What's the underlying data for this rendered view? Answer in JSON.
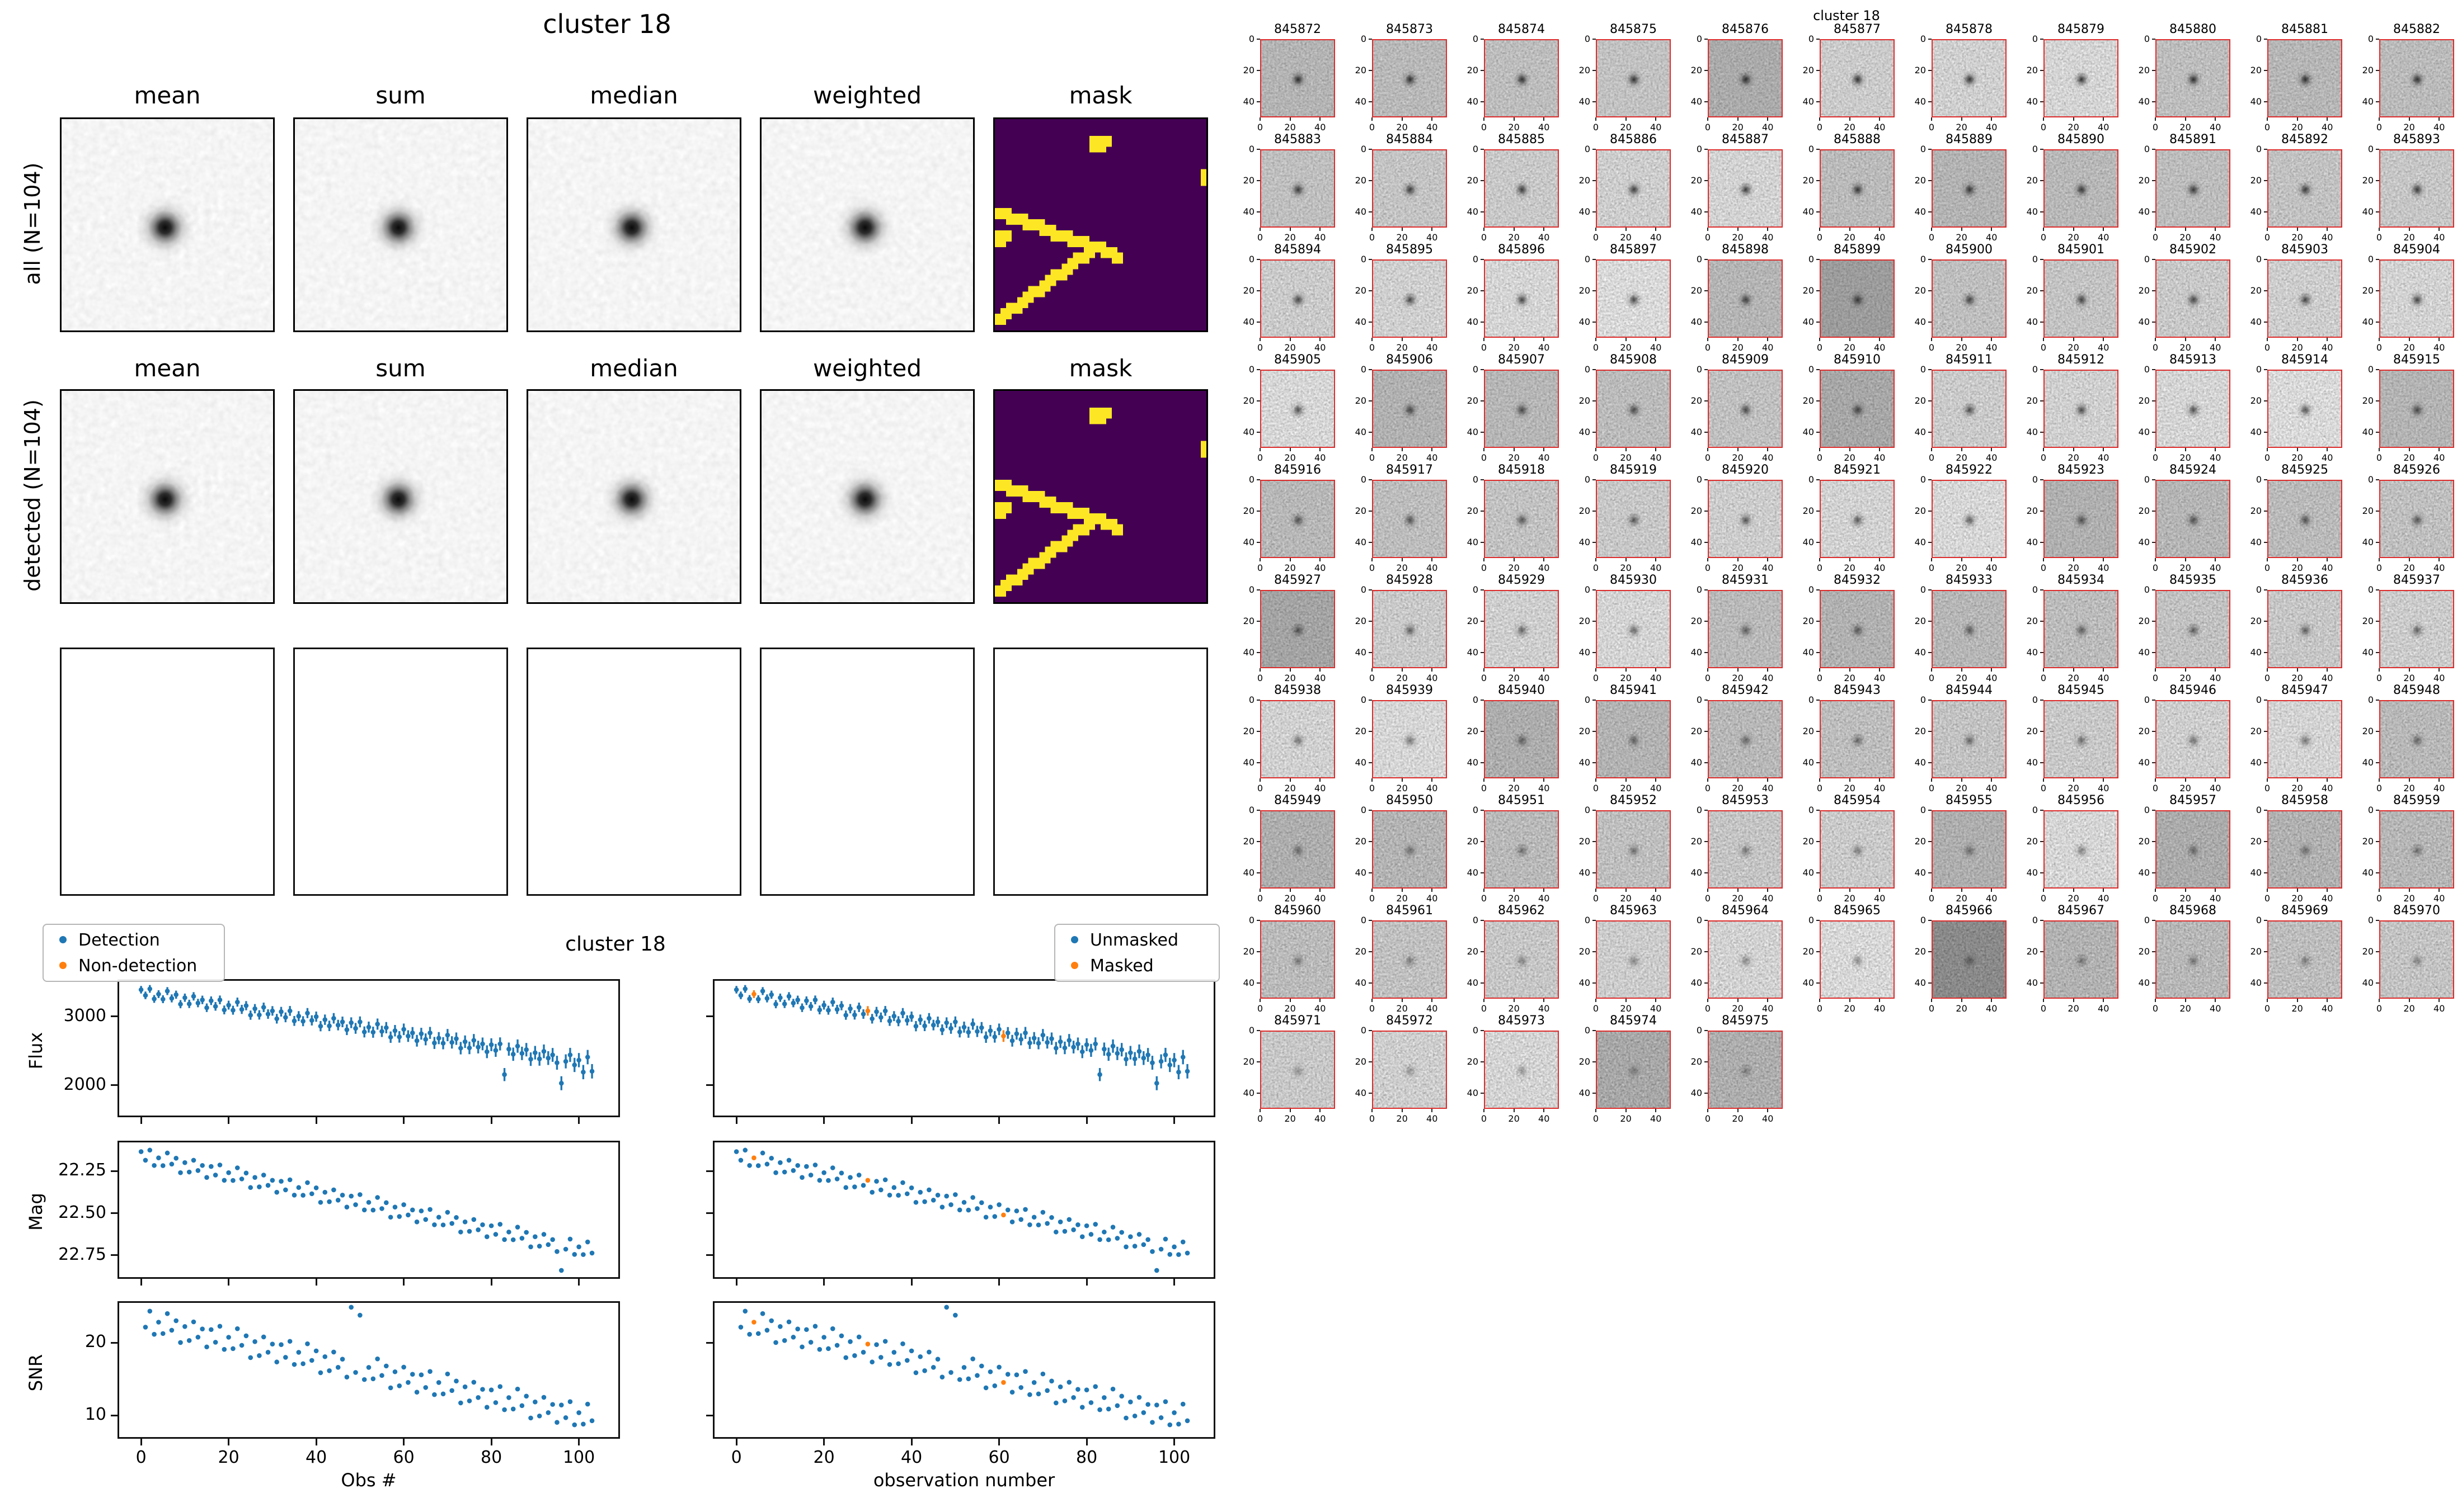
{
  "colors": {
    "detection_blue": "#1f77b4",
    "masked_orange": "#ff7f0e",
    "mask_background": "#440154",
    "mask_foreground": "#fde724",
    "thumb_border": "#dd2c2c"
  },
  "stamp_figure": {
    "title": "cluster 18",
    "column_titles": [
      "mean",
      "sum",
      "median",
      "weighted",
      "mask"
    ],
    "row_labels": [
      "all (N=104)",
      "detected (N=104)"
    ],
    "mask_overlay": {
      "grid": 38,
      "thickness": 2,
      "segments": [
        [
          0,
          16,
          17,
          22
        ],
        [
          17,
          22,
          0,
          35
        ],
        [
          18,
          22,
          21,
          24
        ]
      ],
      "cells": [
        [
          17,
          3
        ],
        [
          18,
          3
        ],
        [
          19,
          3
        ],
        [
          17,
          4
        ],
        [
          18,
          4
        ],
        [
          37,
          9
        ],
        [
          37,
          10
        ],
        [
          0,
          20
        ],
        [
          1,
          20
        ],
        [
          0,
          21
        ]
      ]
    }
  },
  "thumbnail_figure": {
    "title": "cluster 18",
    "x_tick_labels": [
      "0",
      "20",
      "40"
    ],
    "y_tick_labels": [
      "0",
      "20",
      "40"
    ],
    "labels": [
      "845872",
      "845873",
      "845874",
      "845875",
      "845876",
      "845877",
      "845878",
      "845879",
      "845880",
      "845881",
      "845882",
      "845883",
      "845884",
      "845885",
      "845886",
      "845887",
      "845888",
      "845889",
      "845890",
      "845891",
      "845892",
      "845893",
      "845894",
      "845895",
      "845896",
      "845897",
      "845898",
      "845899",
      "845900",
      "845901",
      "845902",
      "845903",
      "845904",
      "845905",
      "845906",
      "845907",
      "845908",
      "845909",
      "845910",
      "845911",
      "845912",
      "845913",
      "845914",
      "845915",
      "845916",
      "845917",
      "845918",
      "845919",
      "845920",
      "845921",
      "845922",
      "845923",
      "845924",
      "845925",
      "845926",
      "845927",
      "845928",
      "845929",
      "845930",
      "845931",
      "845932",
      "845933",
      "845934",
      "845935",
      "845936",
      "845937",
      "845938",
      "845939",
      "845940",
      "845941",
      "845942",
      "845943",
      "845944",
      "845945",
      "845946",
      "845947",
      "845948",
      "845949",
      "845950",
      "845951",
      "845952",
      "845953",
      "845954",
      "845955",
      "845956",
      "845957",
      "845958",
      "845959",
      "845960",
      "845961",
      "845962",
      "845963",
      "845964",
      "845965",
      "845966",
      "845967",
      "845968",
      "845969",
      "845970",
      "845971",
      "845972",
      "845973",
      "845974",
      "845975"
    ]
  },
  "chart_data": {
    "type": "scatter",
    "title": "cluster 18",
    "n_points": 104,
    "x_start": 0,
    "x_step": 1,
    "xlim": [
      -5,
      109
    ],
    "xticks": [
      0,
      20,
      40,
      60,
      80,
      100
    ],
    "xtick_labels": [
      "0",
      "20",
      "40",
      "60",
      "80",
      "100"
    ],
    "xlabel_left": "Obs #",
    "xlabel_right": "observation number",
    "legend_left": [
      "Detection",
      "Non-detection"
    ],
    "legend_right": [
      "Unmasked",
      "Masked"
    ],
    "masked_indices": [
      4,
      30,
      61
    ],
    "series": [
      {
        "name": "Flux",
        "y_top": 3520,
        "y_bottom": 1560,
        "yticks": [
          2000,
          3000
        ],
        "ytick_labels": [
          "2000",
          "3000"
        ],
        "yerr_range": [
          55,
          105
        ],
        "values": [
          3390,
          3308,
          3402,
          3256,
          3326,
          3252,
          3370,
          3264,
          3318,
          3180,
          3274,
          3184,
          3294,
          3196,
          3242,
          3128,
          3230,
          3148,
          3242,
          3096,
          3166,
          3092,
          3210,
          3104,
          3158,
          3020,
          3114,
          3024,
          3134,
          3036,
          3082,
          2968,
          3070,
          2988,
          3082,
          2936,
          3006,
          2932,
          3050,
          2944,
          2998,
          2860,
          2954,
          2864,
          2974,
          2876,
          2922,
          2808,
          2910,
          2828,
          2922,
          2776,
          2846,
          2772,
          2890,
          2784,
          2838,
          2700,
          2794,
          2704,
          2814,
          2716,
          2762,
          2648,
          2750,
          2668,
          2762,
          2616,
          2686,
          2612,
          2730,
          2624,
          2678,
          2540,
          2634,
          2544,
          2654,
          2556,
          2602,
          2488,
          2590,
          2508,
          2602,
          2156,
          2526,
          2452,
          2570,
          2464,
          2518,
          2380,
          2474,
          2384,
          2494,
          2396,
          2442,
          2328,
          2030,
          2348,
          2442,
          2296,
          2366,
          2192,
          2410,
          2204
        ]
      },
      {
        "name": "Mag",
        "y_top": 22.08,
        "y_bottom": 22.88,
        "yticks": [
          22.25,
          22.5,
          22.75
        ],
        "ytick_labels": [
          "22.25",
          "22.50",
          "22.75"
        ],
        "values": [
          22.135,
          22.186,
          22.126,
          22.217,
          22.172,
          22.218,
          22.143,
          22.209,
          22.174,
          22.26,
          22.2,
          22.256,
          22.186,
          22.247,
          22.217,
          22.288,
          22.223,
          22.274,
          22.214,
          22.305,
          22.26,
          22.306,
          22.231,
          22.297,
          22.262,
          22.348,
          22.288,
          22.344,
          22.274,
          22.335,
          22.305,
          22.376,
          22.311,
          22.362,
          22.302,
          22.393,
          22.348,
          22.394,
          22.319,
          22.385,
          22.35,
          22.436,
          22.376,
          22.432,
          22.362,
          22.423,
          22.393,
          22.464,
          22.399,
          22.45,
          22.39,
          22.481,
          22.436,
          22.482,
          22.407,
          22.473,
          22.438,
          22.524,
          22.464,
          22.52,
          22.45,
          22.511,
          22.481,
          22.552,
          22.487,
          22.538,
          22.478,
          22.569,
          22.524,
          22.57,
          22.495,
          22.561,
          22.526,
          22.612,
          22.552,
          22.608,
          22.538,
          22.599,
          22.569,
          22.64,
          22.575,
          22.626,
          22.566,
          22.657,
          22.612,
          22.658,
          22.583,
          22.649,
          22.614,
          22.7,
          22.64,
          22.696,
          22.626,
          22.687,
          22.657,
          22.728,
          22.84,
          22.714,
          22.654,
          22.745,
          22.7,
          22.746,
          22.671,
          22.737
        ]
      },
      {
        "name": "SNR",
        "y_top": 25.5,
        "y_bottom": 7,
        "yticks": [
          10,
          20
        ],
        "ytick_labels": [
          "10",
          "20"
        ],
        "values": [
          26.3,
          22.15,
          24.36,
          21.17,
          22.84,
          21.27,
          24.02,
          21.73,
          23.04,
          20.03,
          22.24,
          20.31,
          22.88,
          20.77,
          21.9,
          19.43,
          21.82,
          20.07,
          22.28,
          19.09,
          20.76,
          19.19,
          21.94,
          19.65,
          20.96,
          17.95,
          20.16,
          18.23,
          20.8,
          18.69,
          19.82,
          17.35,
          19.74,
          17.99,
          20.2,
          17.01,
          18.68,
          17.11,
          19.86,
          17.57,
          18.88,
          15.87,
          18.08,
          16.15,
          18.72,
          16.61,
          17.74,
          15.27,
          24.9,
          15.91,
          23.8,
          14.93,
          16.6,
          15.03,
          17.78,
          15.49,
          16.8,
          13.79,
          16.0,
          14.07,
          16.64,
          14.53,
          15.66,
          13.19,
          15.58,
          13.83,
          16.04,
          12.85,
          14.52,
          12.95,
          15.7,
          13.41,
          14.72,
          11.71,
          13.92,
          11.99,
          14.56,
          12.45,
          13.58,
          11.11,
          13.5,
          11.75,
          13.96,
          10.77,
          12.44,
          10.87,
          13.62,
          11.33,
          12.64,
          9.63,
          11.84,
          9.91,
          12.48,
          10.37,
          11.5,
          9.03,
          11.42,
          9.67,
          11.88,
          8.69,
          10.36,
          8.79,
          11.54,
          9.25
        ]
      }
    ]
  }
}
